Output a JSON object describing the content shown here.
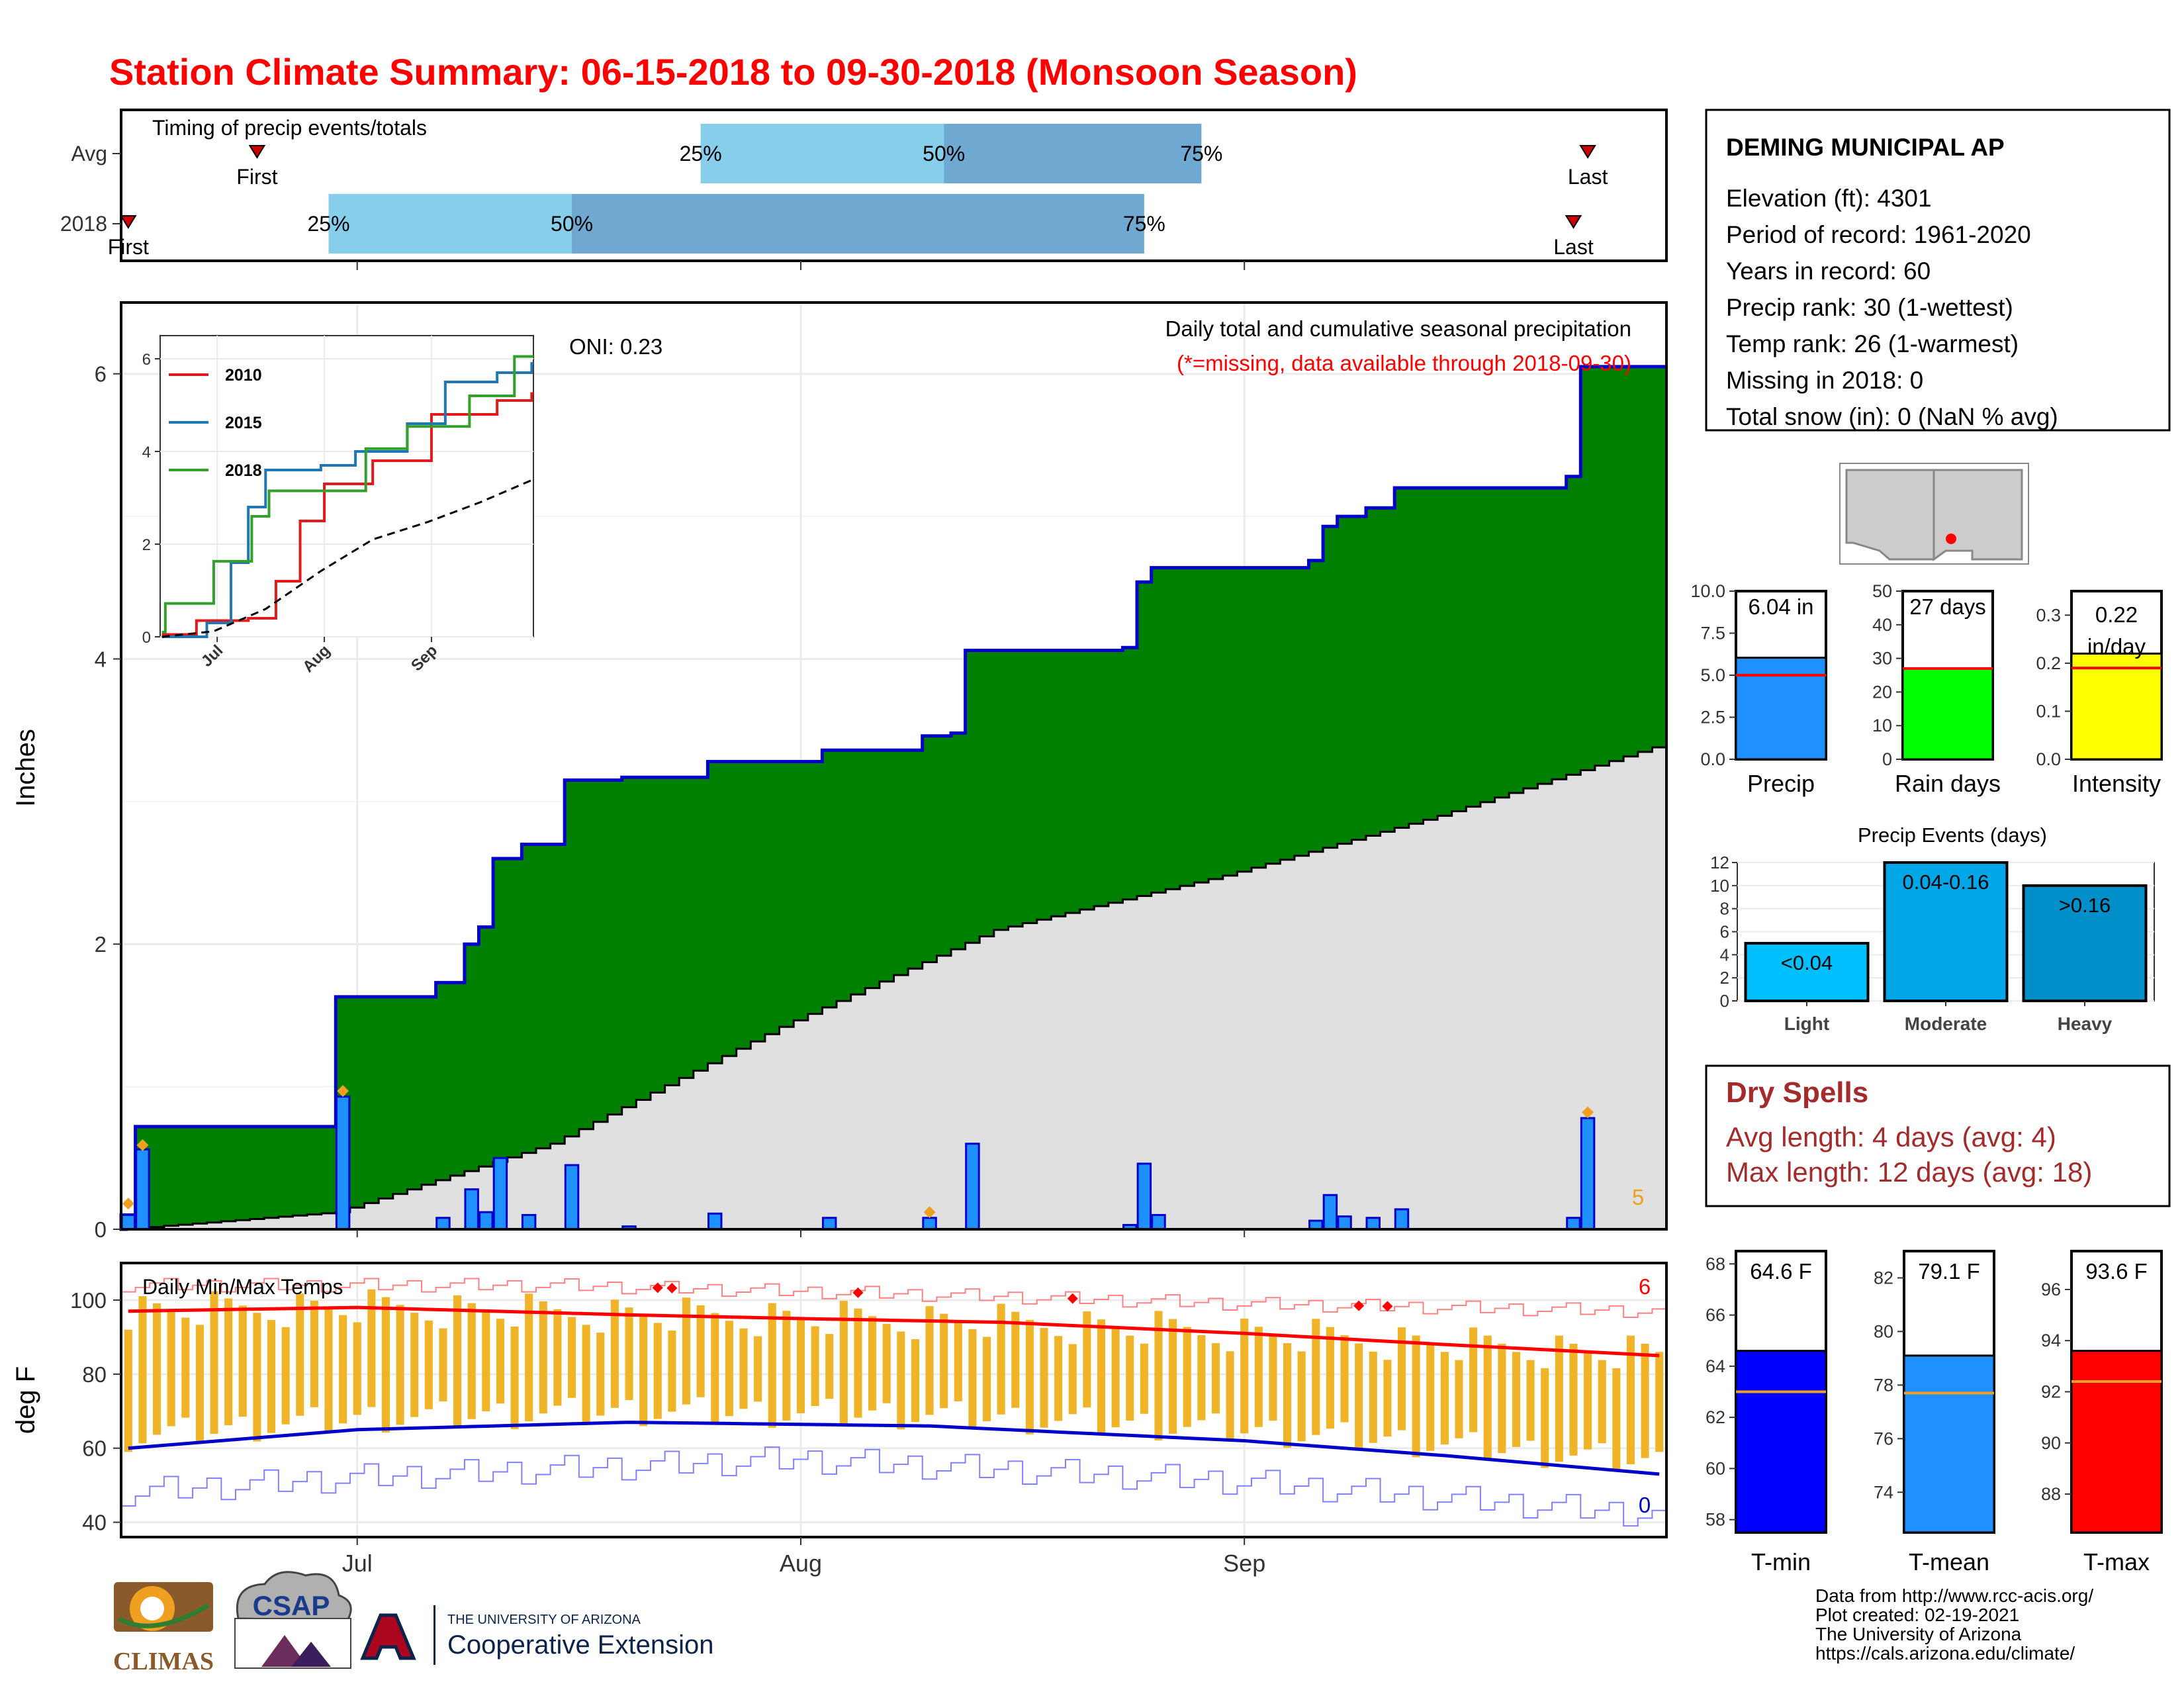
{
  "title": "Station Climate Summary: 06-15-2018 to 09-30-2018 (Monsoon Season)",
  "timing": {
    "label": "Timing of precip events/totals",
    "rows": [
      {
        "name": "Avg",
        "first": "06-24",
        "q25": "07-25",
        "q50": "08-11",
        "q75": "08-29",
        "last": "09-25",
        "first_label": "First",
        "last_label": "Last"
      },
      {
        "name": "2018",
        "first": "06-15",
        "q25": "06-29",
        "q50": "07-16",
        "q75": "08-25",
        "last": "09-24",
        "first_label": "First",
        "last_label": "Last"
      }
    ],
    "pct_labels": [
      "25%",
      "50%",
      "75%"
    ]
  },
  "precip_panel": {
    "title": "Daily total and cumulative seasonal precipitation",
    "subtitle": "(*=missing, data available through 2018-09-30)",
    "oni": "ONI: 0.23",
    "ylabel": "Inches",
    "yticks": [
      0,
      2,
      4,
      6
    ],
    "count_label": "5"
  },
  "inset": {
    "yticks": [
      0,
      2,
      4,
      6
    ],
    "xticks": [
      "Jul",
      "Aug",
      "Sep"
    ],
    "legend": [
      "2010",
      "2015",
      "2018"
    ]
  },
  "temp_panel": {
    "title": "Daily Min/Max Temps",
    "ylabel": "deg F",
    "yticks": [
      40,
      60,
      80,
      100
    ],
    "xticks": [
      "Jul",
      "Aug",
      "Sep"
    ],
    "max_count": "6",
    "min_count": "0"
  },
  "station": {
    "name": "DEMING MUNICIPAL AP",
    "lines": [
      "Elevation (ft): 4301",
      "Period of record: 1961-2020",
      "Years in record: 60",
      "Precip rank: 30 (1-wettest)",
      "Temp rank: 26 (1-warmest)",
      "Missing in 2018: 0",
      "Total snow (in): 0 (NaN % avg)"
    ]
  },
  "mini_bars": [
    {
      "label": "Precip",
      "value_label": "6.04 in",
      "ticks": [
        "0.0",
        "2.5",
        "5.0",
        "7.5",
        "10.0"
      ]
    },
    {
      "label": "Rain days",
      "value_label": "27 days",
      "ticks": [
        "0",
        "10",
        "20",
        "30",
        "40",
        "50"
      ]
    },
    {
      "label": "Intensity",
      "value_label": "0.22 in/day",
      "value_line1": "0.22",
      "value_line2": "in/day",
      "ticks": [
        "0.0",
        "0.1",
        "0.2",
        "0.3"
      ]
    }
  ],
  "events": {
    "title": "Precip Events (days)",
    "yticks": [
      "0",
      "2",
      "4",
      "6",
      "8",
      "10",
      "12"
    ],
    "bars": [
      {
        "cat": "Light",
        "label": "<0.04"
      },
      {
        "cat": "Moderate",
        "label": "0.04-0.16"
      },
      {
        "cat": "Heavy",
        "label": ">0.16"
      }
    ]
  },
  "dry_spells": {
    "title": "Dry Spells",
    "avg": "Avg length: 4 days (avg: 4)",
    "max": "Max length: 12 days (avg: 18)"
  },
  "temp_bars": [
    {
      "label": "T-min",
      "value_label": "64.6 F",
      "ticks": [
        "58",
        "60",
        "62",
        "64",
        "66",
        "68"
      ]
    },
    {
      "label": "T-mean",
      "value_label": "79.1 F",
      "ticks": [
        "74",
        "76",
        "78",
        "80",
        "82"
      ]
    },
    {
      "label": "T-max",
      "value_label": "93.6 F",
      "ticks": [
        "88",
        "90",
        "92",
        "94",
        "96"
      ]
    }
  ],
  "footer": [
    "Data from http://www.rcc-acis.org/",
    "Plot created: 02-19-2021",
    "The University of Arizona",
    "https://cals.arizona.edu/climate/"
  ],
  "logos": {
    "climas": "CLIMAS",
    "csap": "CSAP",
    "ua_top": "THE UNIVERSITY OF ARIZONA",
    "ua_bottom": "Cooperative Extension"
  },
  "colors": {
    "title": "#ff0000",
    "green": "#008000",
    "blue_line": "#0000cc",
    "bar_blue": "#1e90ff",
    "light_q": "#87ceeb",
    "dark_q": "#6fa8d0",
    "orange": "#f0b429",
    "dry": "#a52a2a"
  },
  "chart_data": [
    {
      "type": "area",
      "name": "cumulative",
      "xlabel": "",
      "ylabel": "Inches",
      "ylim": [
        0,
        6.5
      ],
      "start_date": "2018-06-15",
      "end_date": "2018-09-30",
      "daily_precip": [
        {
          "date": "2018-06-15",
          "value": 0.1
        },
        {
          "date": "2018-06-16",
          "value": 0.56
        },
        {
          "date": "2018-06-30",
          "value": 0.93
        },
        {
          "date": "2018-07-07",
          "value": 0.08
        },
        {
          "date": "2018-07-09",
          "value": 0.28
        },
        {
          "date": "2018-07-10",
          "value": 0.12
        },
        {
          "date": "2018-07-11",
          "value": 0.5
        },
        {
          "date": "2018-07-13",
          "value": 0.1
        },
        {
          "date": "2018-07-16",
          "value": 0.45
        },
        {
          "date": "2018-07-20",
          "value": 0.02
        },
        {
          "date": "2018-07-26",
          "value": 0.11
        },
        {
          "date": "2018-08-03",
          "value": 0.08
        },
        {
          "date": "2018-08-10",
          "value": 0.08
        },
        {
          "date": "2018-08-13",
          "value": 0.6
        },
        {
          "date": "2018-08-24",
          "value": 0.03
        },
        {
          "date": "2018-08-25",
          "value": 0.46
        },
        {
          "date": "2018-08-26",
          "value": 0.1
        },
        {
          "date": "2018-09-06",
          "value": 0.06
        },
        {
          "date": "2018-09-07",
          "value": 0.24
        },
        {
          "date": "2018-09-08",
          "value": 0.09
        },
        {
          "date": "2018-09-10",
          "value": 0.08
        },
        {
          "date": "2018-09-12",
          "value": 0.14
        },
        {
          "date": "2018-09-24",
          "value": 0.08
        },
        {
          "date": "2018-09-25",
          "value": 0.78
        }
      ],
      "cumulative_2018": [
        {
          "date": "2018-06-15",
          "value": 0.1
        },
        {
          "date": "2018-06-16",
          "value": 0.72
        },
        {
          "date": "2018-06-30",
          "value": 1.63
        },
        {
          "date": "2018-07-07",
          "value": 1.73
        },
        {
          "date": "2018-07-09",
          "value": 2.0
        },
        {
          "date": "2018-07-10",
          "value": 2.12
        },
        {
          "date": "2018-07-11",
          "value": 2.6
        },
        {
          "date": "2018-07-13",
          "value": 2.7
        },
        {
          "date": "2018-07-16",
          "value": 3.15
        },
        {
          "date": "2018-07-20",
          "value": 3.17
        },
        {
          "date": "2018-07-26",
          "value": 3.28
        },
        {
          "date": "2018-08-03",
          "value": 3.36
        },
        {
          "date": "2018-08-10",
          "value": 3.46
        },
        {
          "date": "2018-08-12",
          "value": 3.48
        },
        {
          "date": "2018-08-13",
          "value": 4.06
        },
        {
          "date": "2018-08-24",
          "value": 4.08
        },
        {
          "date": "2018-08-25",
          "value": 4.54
        },
        {
          "date": "2018-08-26",
          "value": 4.64
        },
        {
          "date": "2018-09-06",
          "value": 4.69
        },
        {
          "date": "2018-09-07",
          "value": 4.93
        },
        {
          "date": "2018-09-08",
          "value": 5.0
        },
        {
          "date": "2018-09-10",
          "value": 5.06
        },
        {
          "date": "2018-09-12",
          "value": 5.2
        },
        {
          "date": "2018-09-24",
          "value": 5.28
        },
        {
          "date": "2018-09-25",
          "value": 6.05
        },
        {
          "date": "2018-09-30",
          "value": 6.05
        }
      ],
      "avg_cumulative": [
        {
          "date": "2018-06-15",
          "value": 0.0
        },
        {
          "date": "2018-06-30",
          "value": 0.12
        },
        {
          "date": "2018-07-15",
          "value": 0.6
        },
        {
          "date": "2018-07-31",
          "value": 1.42
        },
        {
          "date": "2018-08-15",
          "value": 2.1
        },
        {
          "date": "2018-08-31",
          "value": 2.48
        },
        {
          "date": "2018-09-15",
          "value": 2.9
        },
        {
          "date": "2018-09-30",
          "value": 3.38
        }
      ]
    },
    {
      "type": "line",
      "name": "inset",
      "ylim": [
        0,
        6.5
      ],
      "series": [
        {
          "name": "2010",
          "color": "#e31a1c",
          "points": [
            {
              "date": "2018-06-15",
              "value": 0.05
            },
            {
              "date": "2018-06-25",
              "value": 0.35
            },
            {
              "date": "2018-07-10",
              "value": 0.4
            },
            {
              "date": "2018-07-18",
              "value": 1.2
            },
            {
              "date": "2018-07-25",
              "value": 2.5
            },
            {
              "date": "2018-08-01",
              "value": 3.3
            },
            {
              "date": "2018-08-15",
              "value": 3.8
            },
            {
              "date": "2018-09-01",
              "value": 4.8
            },
            {
              "date": "2018-09-20",
              "value": 5.1
            },
            {
              "date": "2018-09-30",
              "value": 5.25
            }
          ]
        },
        {
          "name": "2015",
          "color": "#1f78b4",
          "points": [
            {
              "date": "2018-06-15",
              "value": 0.0
            },
            {
              "date": "2018-06-28",
              "value": 0.3
            },
            {
              "date": "2018-07-05",
              "value": 1.6
            },
            {
              "date": "2018-07-10",
              "value": 2.8
            },
            {
              "date": "2018-07-15",
              "value": 3.6
            },
            {
              "date": "2018-07-31",
              "value": 3.7
            },
            {
              "date": "2018-08-10",
              "value": 4.0
            },
            {
              "date": "2018-08-25",
              "value": 4.6
            },
            {
              "date": "2018-09-05",
              "value": 5.5
            },
            {
              "date": "2018-09-20",
              "value": 5.7
            },
            {
              "date": "2018-09-30",
              "value": 5.9
            }
          ]
        },
        {
          "name": "2018",
          "color": "#33a02c",
          "points": [
            {
              "date": "2018-06-15",
              "value": 0.1
            },
            {
              "date": "2018-06-16",
              "value": 0.72
            },
            {
              "date": "2018-06-30",
              "value": 1.63
            },
            {
              "date": "2018-07-11",
              "value": 2.6
            },
            {
              "date": "2018-07-16",
              "value": 3.15
            },
            {
              "date": "2018-08-13",
              "value": 4.06
            },
            {
              "date": "2018-08-25",
              "value": 4.54
            },
            {
              "date": "2018-09-12",
              "value": 5.2
            },
            {
              "date": "2018-09-25",
              "value": 6.05
            },
            {
              "date": "2018-09-30",
              "value": 6.05
            }
          ]
        },
        {
          "name": "avg",
          "color": "#000000",
          "points": [
            {
              "date": "2018-06-15",
              "value": 0.0
            },
            {
              "date": "2018-06-30",
              "value": 0.12
            },
            {
              "date": "2018-07-15",
              "value": 0.6
            },
            {
              "date": "2018-07-31",
              "value": 1.42
            },
            {
              "date": "2018-08-15",
              "value": 2.1
            },
            {
              "date": "2018-08-31",
              "value": 2.48
            },
            {
              "date": "2018-09-15",
              "value": 2.9
            },
            {
              "date": "2018-09-30",
              "value": 3.38
            }
          ]
        }
      ]
    },
    {
      "type": "bar",
      "name": "temperature",
      "ylabel": "deg F",
      "ylim": [
        36,
        110
      ],
      "tmax_avg": [
        {
          "date": "2018-06-15",
          "value": 97
        },
        {
          "date": "2018-07-01",
          "value": 98
        },
        {
          "date": "2018-07-20",
          "value": 96
        },
        {
          "date": "2018-08-01",
          "value": 95
        },
        {
          "date": "2018-08-15",
          "value": 94
        },
        {
          "date": "2018-09-01",
          "value": 91
        },
        {
          "date": "2018-09-15",
          "value": 88
        },
        {
          "date": "2018-09-30",
          "value": 85
        }
      ],
      "tmin_avg": [
        {
          "date": "2018-06-15",
          "value": 60
        },
        {
          "date": "2018-07-01",
          "value": 65
        },
        {
          "date": "2018-07-20",
          "value": 67
        },
        {
          "date": "2018-08-10",
          "value": 66
        },
        {
          "date": "2018-09-01",
          "value": 62
        },
        {
          "date": "2018-09-15",
          "value": 58
        },
        {
          "date": "2018-09-30",
          "value": 53
        }
      ],
      "tmax_record": [
        {
          "date": "2018-06-15",
          "value": 104
        },
        {
          "date": "2018-07-15",
          "value": 104
        },
        {
          "date": "2018-08-15",
          "value": 101
        },
        {
          "date": "2018-09-01",
          "value": 99
        },
        {
          "date": "2018-09-30",
          "value": 97
        }
      ],
      "tmin_record": [
        {
          "date": "2018-06-15",
          "value": 48
        },
        {
          "date": "2018-07-01",
          "value": 52
        },
        {
          "date": "2018-08-01",
          "value": 57
        },
        {
          "date": "2018-09-01",
          "value": 51
        },
        {
          "date": "2018-09-30",
          "value": 42
        }
      ]
    },
    {
      "type": "bar",
      "name": "summary",
      "categories": [
        "Precip",
        "Rain days",
        "Intensity"
      ],
      "values": [
        6.04,
        27,
        0.22
      ],
      "averages": [
        5.0,
        27,
        0.19
      ],
      "ylims": [
        [
          0,
          10
        ],
        [
          0,
          50
        ],
        [
          0,
          0.35
        ]
      ]
    },
    {
      "type": "bar",
      "name": "precip_events",
      "categories": [
        "Light",
        "Moderate",
        "Heavy"
      ],
      "values": [
        5,
        12,
        10
      ],
      "ylim": [
        0,
        12
      ]
    },
    {
      "type": "bar",
      "name": "temperature_summary",
      "categories": [
        "T-min",
        "T-mean",
        "T-max"
      ],
      "values": [
        64.6,
        79.1,
        93.6
      ],
      "averages": [
        63.0,
        77.7,
        92.4
      ],
      "ylims": [
        [
          57.5,
          68.5
        ],
        [
          72.5,
          83
        ],
        [
          86.5,
          97.5
        ]
      ]
    }
  ]
}
